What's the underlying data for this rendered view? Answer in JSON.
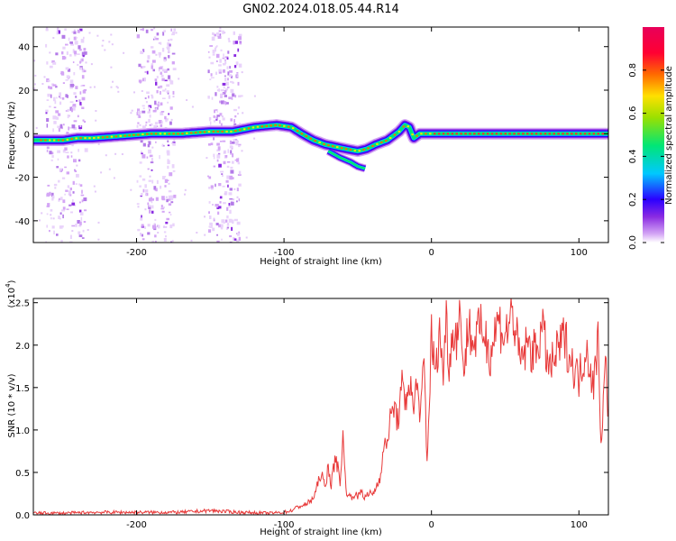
{
  "figure_title": "GN02.2024.018.05.44.R14",
  "chart_data": [
    {
      "type": "heatmap",
      "xlabel": "Height of straight line (km)",
      "ylabel": "Frequency (Hz)",
      "xlim": [
        -270,
        120
      ],
      "ylim": [
        -50,
        49
      ],
      "xticks": [
        -200,
        -100,
        0,
        100
      ],
      "yticks": [
        -40,
        -20,
        0,
        20,
        40
      ],
      "colorbar": {
        "label": "Normalized spectral amplitude",
        "range": [
          0,
          1
        ],
        "ticks": [
          0.0,
          0.2,
          0.4,
          0.6,
          0.8
        ],
        "colors": [
          "#ffffff",
          "#d4a6f5",
          "#8a2be2",
          "#2b00ff",
          "#00c8ff",
          "#00e676",
          "#9be000",
          "#ffe000",
          "#ff6a00",
          "#ff0033",
          "#e8005a"
        ]
      },
      "ridge": {
        "x": [
          -270,
          -250,
          -240,
          -230,
          -210,
          -190,
          -170,
          -150,
          -135,
          -120,
          -105,
          -95,
          -88,
          -80,
          -72,
          -65,
          -58,
          -50,
          -44,
          -38,
          -30,
          -22,
          -18,
          -15,
          -12,
          -8,
          -4,
          0,
          20,
          60,
          120
        ],
        "y": [
          -3,
          -3,
          -2,
          -2,
          -1,
          0,
          0,
          1,
          1,
          3,
          4,
          3,
          0,
          -3,
          -5,
          -6,
          -7,
          -8,
          -7,
          -5,
          -3,
          1,
          4,
          3,
          -2,
          0,
          0,
          0,
          0,
          0,
          0
        ]
      },
      "branch": {
        "x": [
          -70,
          -62,
          -55,
          -50,
          -45
        ],
        "y": [
          -8,
          -11,
          -13,
          -15,
          -16
        ]
      },
      "noise_bands": [
        [
          -262,
          -235
        ],
        [
          -200,
          -175
        ],
        [
          -152,
          -130
        ]
      ]
    },
    {
      "type": "line",
      "xlabel": "Height of straight line (km)",
      "ylabel": "SNR (10 * v/v)",
      "y_multiplier": "(x10",
      "y_multiplier_exp": "4",
      "xlim": [
        -270,
        120
      ],
      "ylim": [
        0,
        2.55
      ],
      "xticks": [
        -200,
        -100,
        0,
        100
      ],
      "yticks": [
        "0.0",
        "0.5",
        "1.0",
        "1.5",
        "2.0",
        "2.5"
      ],
      "line_color": "#e83a3a",
      "series": [
        {
          "x": [
            -270,
            -250,
            -230,
            -210,
            -190,
            -170,
            -150,
            -130,
            -110,
            -100,
            -95,
            -90,
            -85,
            -80,
            -78,
            -75,
            -72,
            -70,
            -68,
            -65,
            -62,
            -60,
            -58,
            -55,
            -52,
            -50,
            -48,
            -45,
            -42,
            -40,
            -38,
            -35,
            -33,
            -30,
            -28,
            -25,
            -23,
            -20,
            -18,
            -15,
            -12,
            -10,
            -8,
            -5,
            -3,
            0,
            3,
            5,
            8,
            10,
            12,
            15,
            18,
            20,
            22,
            25,
            28,
            30,
            35,
            40,
            45,
            50,
            55,
            60,
            65,
            70,
            75,
            80,
            85,
            90,
            95,
            100,
            105,
            108,
            110,
            113,
            115,
            118,
            120
          ],
          "y": [
            0.02,
            0.02,
            0.03,
            0.03,
            0.03,
            0.03,
            0.05,
            0.03,
            0.02,
            0.03,
            0.05,
            0.1,
            0.12,
            0.2,
            0.3,
            0.5,
            0.3,
            0.6,
            0.35,
            0.7,
            0.4,
            0.9,
            0.3,
            0.2,
            0.25,
            0.2,
            0.3,
            0.2,
            0.25,
            0.25,
            0.3,
            0.45,
            0.7,
            0.9,
            1.1,
            1.3,
            1.1,
            1.5,
            1.3,
            1.6,
            1.2,
            1.7,
            1.0,
            1.9,
            0.6,
            2.1,
            1.6,
            2.2,
            1.7,
            2.3,
            1.8,
            2.2,
            2.1,
            2.5,
            1.6,
            2.3,
            2.0,
            2.1,
            2.2,
            1.9,
            2.3,
            2.1,
            2.4,
            1.8,
            2.0,
            1.9,
            2.2,
            1.7,
            1.9,
            2.1,
            1.8,
            1.6,
            2.0,
            1.7,
            1.5,
            2.1,
            0.85,
            1.8,
            1.2
          ]
        }
      ]
    }
  ]
}
